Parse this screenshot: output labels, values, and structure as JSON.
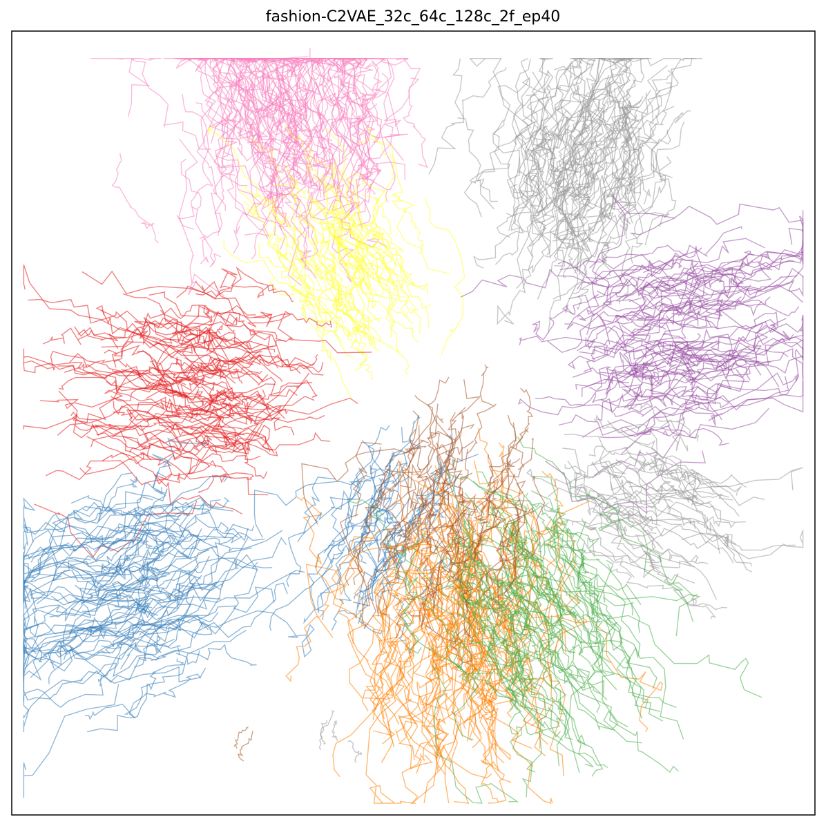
{
  "chart_data": {
    "type": "line",
    "title": "fashion-C2VAE_32c_64c_128c_2f_ep40",
    "xlabel": "",
    "ylabel": "",
    "ticks_visible": false,
    "grid": false,
    "legend": "none",
    "xlim": [
      -1.0,
      1.0
    ],
    "ylim": [
      -1.0,
      1.0
    ],
    "series": [
      {
        "color": "#f781bf",
        "center": [
          -0.3,
          0.62
        ],
        "angle_deg": 100,
        "spread": 0.3,
        "count": 130
      },
      {
        "color": "#ffff33",
        "center": [
          -0.12,
          0.28
        ],
        "angle_deg": 120,
        "spread": 0.2,
        "count": 70
      },
      {
        "color": "#999999",
        "center": [
          0.38,
          0.5
        ],
        "angle_deg": 75,
        "spread": 0.25,
        "count": 110
      },
      {
        "color": "#984ea3",
        "center": [
          0.5,
          0.17
        ],
        "angle_deg": 10,
        "spread": 0.28,
        "count": 90
      },
      {
        "color": "#999999",
        "center": [
          0.46,
          -0.18
        ],
        "angle_deg": -25,
        "spread": 0.22,
        "count": 50
      },
      {
        "color": "#e41a1c",
        "center": [
          -0.38,
          0.05
        ],
        "angle_deg": 175,
        "spread": 0.26,
        "count": 90
      },
      {
        "color": "#377eb8",
        "center": [
          -0.55,
          -0.38
        ],
        "angle_deg": 200,
        "spread": 0.3,
        "count": 90
      },
      {
        "color": "#377eb8",
        "center": [
          -0.05,
          -0.18
        ],
        "angle_deg": 250,
        "spread": 0.2,
        "count": 40
      },
      {
        "color": "#ff7f00",
        "center": [
          0.12,
          -0.35
        ],
        "angle_deg": 270,
        "spread": 0.3,
        "count": 120
      },
      {
        "color": "#4daf4a",
        "center": [
          0.22,
          -0.35
        ],
        "angle_deg": 300,
        "spread": 0.28,
        "count": 90
      },
      {
        "color": "#a65628",
        "center": [
          0.1,
          -0.1
        ],
        "angle_deg": 260,
        "spread": 0.25,
        "count": 50
      },
      {
        "color": "#999999",
        "center": [
          -0.22,
          -0.78
        ],
        "angle_deg": 260,
        "spread": 0.06,
        "count": 4
      },
      {
        "color": "#a65628",
        "center": [
          -0.4,
          -0.78
        ],
        "angle_deg": 260,
        "spread": 0.05,
        "count": 2
      }
    ]
  }
}
